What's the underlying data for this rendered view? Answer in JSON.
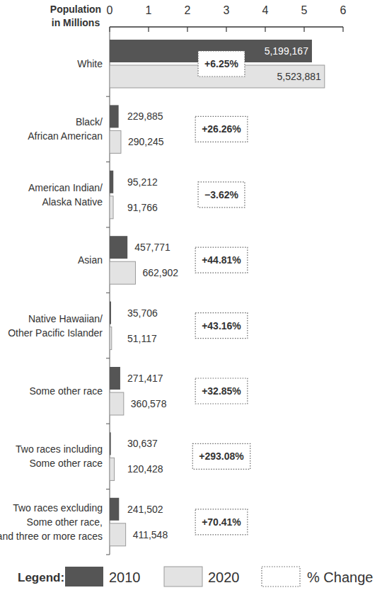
{
  "chart_data": {
    "type": "bar",
    "orientation": "horizontal",
    "x_label": "Population\nin Millions",
    "categories": [
      "White",
      "Black/\nAfrican American",
      "American Indian/\nAlaska Native",
      "Asian",
      "Native Hawaiian/\nOther Pacific Islander",
      "Some other race",
      "Two races including\nSome other race",
      "Two races excluding\nSome other race,\nand three or more races"
    ],
    "series": [
      {
        "name": "2010",
        "color": "#555555",
        "values": [
          5.199167,
          0.229885,
          0.095212,
          0.457771,
          0.035706,
          0.271417,
          0.030637,
          0.241502
        ],
        "value_labels": [
          "5,199,167",
          "229,885",
          "95,212",
          "457,771",
          "35,706",
          "271,417",
          "30,637",
          "241,502"
        ]
      },
      {
        "name": "2020",
        "color": "#e3e3e3",
        "values": [
          5.523881,
          0.290245,
          0.091766,
          0.662902,
          0.051117,
          0.360578,
          0.120428,
          0.411548
        ],
        "value_labels": [
          "5,523,881",
          "290,245",
          "91,766",
          "662,902",
          "51,117",
          "360,578",
          "120,428",
          "411,548"
        ]
      }
    ],
    "percent_change": [
      6.25,
      26.26,
      -3.62,
      44.81,
      43.16,
      32.85,
      293.08,
      70.41
    ],
    "percent_change_labels": [
      "+6.25%",
      "+26.26%",
      "−3.62%",
      "+44.81%",
      "+43.16%",
      "+32.85%",
      "+293.08%",
      "+70.41%"
    ],
    "percent_change_name": "% Change",
    "legend_title": "Legend:",
    "xlim": [
      0,
      6
    ],
    "xticks": [
      0,
      1,
      2,
      3,
      4,
      5,
      6
    ],
    "data_labels": true,
    "grid": false,
    "legend": "bottom"
  }
}
